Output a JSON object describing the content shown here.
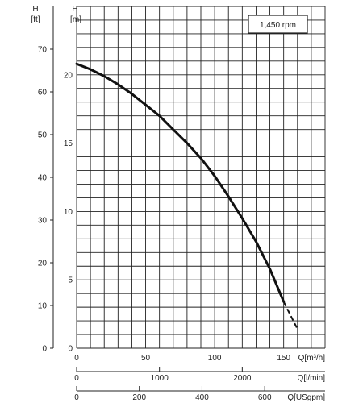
{
  "chart_data": {
    "type": "line",
    "title": "",
    "speed_label": "1,450 rpm",
    "left_axis": {
      "symbol": "H",
      "unit": "[ft]",
      "ylim": [
        0,
        80
      ],
      "ticks": [
        0,
        10,
        20,
        30,
        40,
        50,
        60,
        70
      ]
    },
    "inner_axis": {
      "symbol": "H",
      "unit": "[m]",
      "ylim": [
        0,
        25
      ],
      "ticks": [
        0,
        5,
        10,
        15,
        20
      ]
    },
    "x_axes": [
      {
        "id": "m3h",
        "unit": "Q[m³/h]",
        "xlim": [
          0,
          180
        ],
        "ticks": [
          0,
          50,
          100,
          150
        ]
      },
      {
        "id": "lmin",
        "unit": "Q[l/min]",
        "xlim": [
          0,
          3000
        ],
        "ticks": [
          0,
          1000,
          2000
        ]
      },
      {
        "id": "usgpm",
        "unit": "Q[USgpm]",
        "xlim": [
          0,
          792.5
        ],
        "ticks": [
          0,
          200,
          400,
          600
        ]
      }
    ],
    "grid": true,
    "series": [
      {
        "x_units": "m3/h",
        "y_units": "m",
        "points": [
          [
            0,
            20.8
          ],
          [
            10,
            20.4
          ],
          [
            20,
            19.9
          ],
          [
            30,
            19.3
          ],
          [
            40,
            18.6
          ],
          [
            50,
            17.8
          ],
          [
            60,
            17.0
          ],
          [
            70,
            16.0
          ],
          [
            80,
            15.0
          ],
          [
            90,
            13.9
          ],
          [
            100,
            12.6
          ],
          [
            110,
            11.1
          ],
          [
            120,
            9.5
          ],
          [
            130,
            7.8
          ],
          [
            140,
            5.8
          ],
          [
            150,
            3.4
          ]
        ],
        "extension": [
          [
            150,
            3.4
          ],
          [
            160,
            1.4
          ]
        ]
      }
    ]
  }
}
